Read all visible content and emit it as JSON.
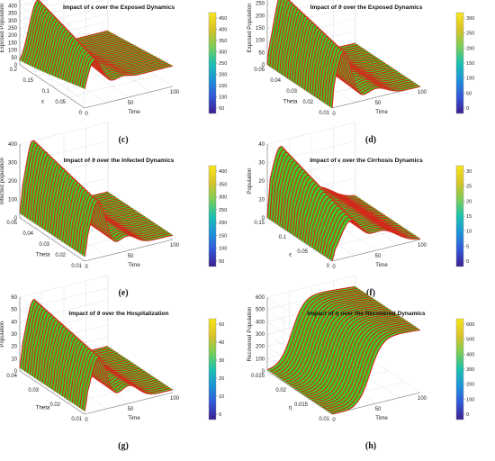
{
  "colors": {
    "surface_fill": "#3dcc2a",
    "surface_line": "#d12a1a",
    "grid": "#e2e2e2",
    "axis": "#777777",
    "colorbar": [
      "#3e1f8f",
      "#3256d6",
      "#1e93d8",
      "#1dc1ae",
      "#7ccd56",
      "#d8c22a",
      "#f9e51c"
    ]
  },
  "chart_data": [
    {
      "type": "surface",
      "title": "Impact of ϵ over the Exposed Dynamics",
      "caption": "(c)",
      "zlabel": "Exposed Population",
      "xlabel": "ϵ",
      "ylabel": "Time",
      "z_ticks": [
        "0",
        "50",
        "100",
        "150",
        "200",
        "250",
        "300",
        "350",
        "400",
        "450",
        "500"
      ],
      "x_ticks": [
        "0.2",
        "0.15",
        "0.1",
        "0.05",
        "0"
      ],
      "y_ticks": [
        "0",
        "50",
        "100"
      ],
      "colorbar_ticks": [
        "50",
        "100",
        "150",
        "200",
        "250",
        "300",
        "350",
        "400",
        "450"
      ],
      "profile": "epsilon-exposed"
    },
    {
      "type": "surface",
      "title": "Impact of ϑ over the Exposed Dynamics",
      "caption": "(d)",
      "zlabel": "Exposed Population",
      "xlabel": "Theta",
      "ylabel": "Time",
      "z_ticks": [
        "0",
        "50",
        "100",
        "150",
        "200",
        "250",
        "300"
      ],
      "x_ticks": [
        "0.05",
        "0.04",
        "0.03",
        "0.02",
        "0.01"
      ],
      "y_ticks": [
        "0",
        "50",
        "100"
      ],
      "colorbar_ticks": [
        "0",
        "50",
        "100",
        "150",
        "200",
        "250",
        "300"
      ],
      "profile": "theta-exposed"
    },
    {
      "type": "surface",
      "title": "Impact of ϑ over the Infected Dynamics",
      "caption": "(e)",
      "zlabel": "Infected population",
      "xlabel": "Theta",
      "ylabel": "Time",
      "z_ticks": [
        "0",
        "100",
        "200",
        "300",
        "400"
      ],
      "x_ticks": [
        "0.05",
        "0.04",
        "0.03",
        "0.02",
        "0.01"
      ],
      "y_ticks": [
        "0",
        "50",
        "100"
      ],
      "colorbar_ticks": [
        "50",
        "100",
        "150",
        "200",
        "250",
        "300",
        "350",
        "400"
      ],
      "profile": "theta-infected"
    },
    {
      "type": "surface",
      "title": "Impact of ϵ over the Cirrhosis Dynamics",
      "caption": "(f)",
      "zlabel": "Population",
      "xlabel": "ϵ",
      "ylabel": "Time",
      "z_ticks": [
        "0",
        "10",
        "20",
        "30",
        "40"
      ],
      "x_ticks": [
        "0.15",
        "0.1",
        "0.05",
        "0"
      ],
      "y_ticks": [
        "0",
        "50",
        "100"
      ],
      "colorbar_ticks": [
        "0",
        "5",
        "10",
        "15",
        "20",
        "25",
        "30"
      ],
      "profile": "epsilon-cirrhosis"
    },
    {
      "type": "surface",
      "title": "Impact of ϑ over the Hospitalization",
      "caption": "(g)",
      "zlabel": "Population",
      "xlabel": "Theta",
      "ylabel": "Time",
      "z_ticks": [
        "0",
        "10",
        "20",
        "30",
        "40",
        "50",
        "60"
      ],
      "x_ticks": [
        "0.04",
        "0.03",
        "0.02",
        "0.01"
      ],
      "y_ticks": [
        "0",
        "50",
        "100"
      ],
      "colorbar_ticks": [
        "0",
        "10",
        "20",
        "30",
        "40",
        "50"
      ],
      "profile": "theta-hospital"
    },
    {
      "type": "surface",
      "title": "Impact of η over the Recovered Dynamics",
      "caption": "(h)",
      "zlabel": "Recovered Population",
      "xlabel": "η",
      "ylabel": "Time",
      "z_ticks": [
        "0",
        "100",
        "200",
        "300",
        "400",
        "500",
        "600"
      ],
      "x_ticks": [
        "0.025",
        "0.02",
        "0.015",
        "0.01"
      ],
      "y_ticks": [
        "0",
        "50",
        "100"
      ],
      "colorbar_ticks": [
        "0",
        "100",
        "200",
        "300",
        "400",
        "500",
        "600"
      ],
      "profile": "eta-recovered"
    }
  ]
}
